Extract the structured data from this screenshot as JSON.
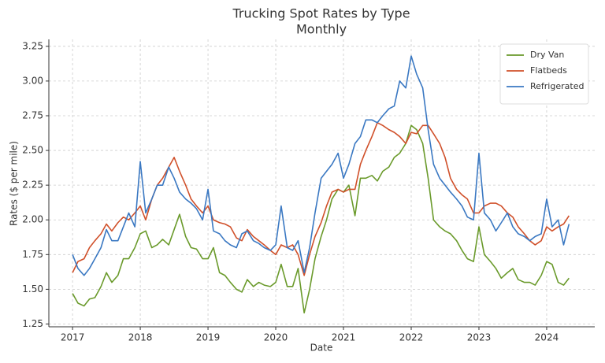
{
  "chart_data": {
    "type": "line",
    "title": "Trucking Spot Rates by Type",
    "subtitle": "Monthly",
    "x_label": "Date",
    "y_label": "Rates ($ per mile)",
    "x": [
      2017.0,
      2017.08,
      2017.17,
      2017.25,
      2017.33,
      2017.42,
      2017.5,
      2017.58,
      2017.67,
      2017.75,
      2017.83,
      2017.92,
      2018.0,
      2018.08,
      2018.17,
      2018.25,
      2018.33,
      2018.42,
      2018.5,
      2018.58,
      2018.67,
      2018.75,
      2018.83,
      2018.92,
      2019.0,
      2019.08,
      2019.17,
      2019.25,
      2019.33,
      2019.42,
      2019.5,
      2019.58,
      2019.67,
      2019.75,
      2019.83,
      2019.92,
      2020.0,
      2020.08,
      2020.17,
      2020.25,
      2020.33,
      2020.42,
      2020.5,
      2020.58,
      2020.67,
      2020.75,
      2020.83,
      2020.92,
      2021.0,
      2021.08,
      2021.17,
      2021.25,
      2021.33,
      2021.42,
      2021.5,
      2021.58,
      2021.67,
      2021.75,
      2021.83,
      2021.92,
      2022.0,
      2022.08,
      2022.17,
      2022.25,
      2022.33,
      2022.42,
      2022.5,
      2022.58,
      2022.67,
      2022.75,
      2022.83,
      2022.92,
      2023.0,
      2023.08,
      2023.17,
      2023.25,
      2023.33,
      2023.42,
      2023.5,
      2023.58,
      2023.67,
      2023.75,
      2023.83,
      2023.92,
      2024.0,
      2024.08,
      2024.17,
      2024.25,
      2024.33
    ],
    "series": [
      {
        "name": "Dry Van",
        "color": "#6a9a2b",
        "values": [
          1.47,
          1.4,
          1.38,
          1.43,
          1.44,
          1.52,
          1.62,
          1.55,
          1.6,
          1.72,
          1.72,
          1.8,
          1.9,
          1.92,
          1.8,
          1.82,
          1.86,
          1.82,
          1.93,
          2.04,
          1.88,
          1.8,
          1.79,
          1.72,
          1.72,
          1.8,
          1.62,
          1.6,
          1.55,
          1.5,
          1.48,
          1.57,
          1.52,
          1.55,
          1.53,
          1.52,
          1.55,
          1.68,
          1.52,
          1.52,
          1.65,
          1.33,
          1.5,
          1.72,
          1.88,
          2.0,
          2.15,
          2.22,
          2.2,
          2.25,
          2.03,
          2.3,
          2.3,
          2.32,
          2.28,
          2.35,
          2.38,
          2.45,
          2.48,
          2.55,
          2.68,
          2.65,
          2.55,
          2.3,
          2.0,
          1.95,
          1.92,
          1.9,
          1.85,
          1.78,
          1.72,
          1.7,
          1.95,
          1.75,
          1.7,
          1.65,
          1.58,
          1.62,
          1.65,
          1.57,
          1.55,
          1.55,
          1.53,
          1.6,
          1.7,
          1.68,
          1.55,
          1.53,
          1.58
        ]
      },
      {
        "name": "Flatbeds",
        "color": "#d0502a",
        "values": [
          1.62,
          1.7,
          1.72,
          1.8,
          1.85,
          1.9,
          1.97,
          1.92,
          1.98,
          2.02,
          2.0,
          2.05,
          2.1,
          2.0,
          2.15,
          2.25,
          2.3,
          2.38,
          2.45,
          2.35,
          2.25,
          2.15,
          2.1,
          2.05,
          2.1,
          2.0,
          1.98,
          1.97,
          1.95,
          1.87,
          1.85,
          1.93,
          1.88,
          1.85,
          1.82,
          1.78,
          1.75,
          1.82,
          1.8,
          1.82,
          1.75,
          1.6,
          1.75,
          1.88,
          1.98,
          2.1,
          2.2,
          2.22,
          2.2,
          2.22,
          2.22,
          2.4,
          2.5,
          2.6,
          2.7,
          2.68,
          2.65,
          2.63,
          2.6,
          2.55,
          2.63,
          2.62,
          2.68,
          2.68,
          2.62,
          2.55,
          2.45,
          2.3,
          2.22,
          2.18,
          2.15,
          2.05,
          2.05,
          2.1,
          2.12,
          2.12,
          2.1,
          2.05,
          2.02,
          1.95,
          1.9,
          1.85,
          1.82,
          1.85,
          1.95,
          1.92,
          1.95,
          1.97,
          2.03
        ]
      },
      {
        "name": "Refrigerated",
        "color": "#3a78c2",
        "values": [
          1.75,
          1.65,
          1.6,
          1.65,
          1.72,
          1.8,
          1.93,
          1.85,
          1.85,
          1.95,
          2.05,
          1.95,
          2.42,
          2.05,
          2.15,
          2.25,
          2.25,
          2.38,
          2.3,
          2.2,
          2.15,
          2.12,
          2.08,
          2.0,
          2.22,
          1.92,
          1.9,
          1.85,
          1.82,
          1.8,
          1.9,
          1.92,
          1.85,
          1.83,
          1.8,
          1.78,
          1.82,
          2.1,
          1.8,
          1.78,
          1.85,
          1.62,
          1.8,
          2.05,
          2.3,
          2.35,
          2.4,
          2.48,
          2.3,
          2.4,
          2.55,
          2.6,
          2.72,
          2.72,
          2.7,
          2.75,
          2.8,
          2.82,
          3.0,
          2.95,
          3.18,
          3.05,
          2.95,
          2.65,
          2.4,
          2.3,
          2.25,
          2.2,
          2.15,
          2.1,
          2.02,
          2.0,
          2.48,
          2.05,
          2.0,
          1.92,
          1.98,
          2.05,
          1.95,
          1.9,
          1.88,
          1.85,
          1.88,
          1.9,
          2.15,
          1.95,
          2.0,
          1.82,
          1.97
        ]
      }
    ],
    "xlim": [
      2016.65,
      2024.71
    ],
    "xticks": [
      2017,
      2018,
      2019,
      2020,
      2021,
      2022,
      2023,
      2024
    ],
    "ylim": [
      1.23,
      3.3
    ],
    "yticks": [
      1.25,
      {
        "value": 1.5,
        "label": "1.50"
      },
      1.75,
      {
        "value": 2,
        "label": "2.00"
      },
      2.25,
      {
        "value": 2.5,
        "label": "2.50"
      },
      2.75,
      {
        "value": 3,
        "label": "3.00"
      },
      3.25
    ],
    "grid": true,
    "legend": "upper right"
  }
}
